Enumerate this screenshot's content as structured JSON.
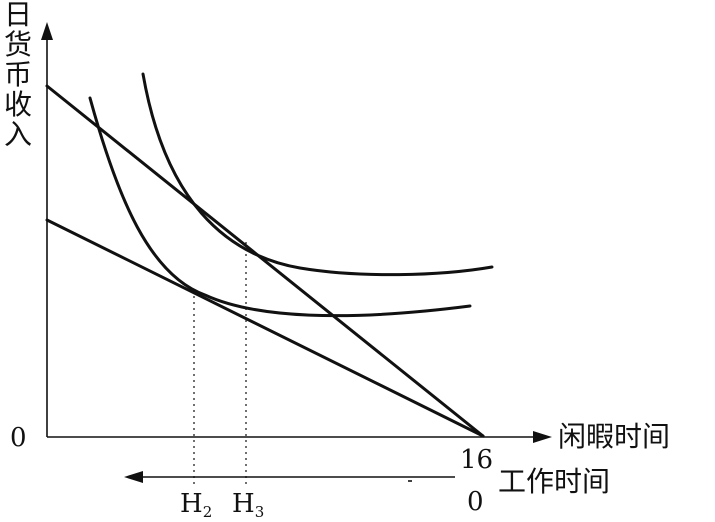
{
  "diagram": {
    "y_axis_label": "日货币收入",
    "x_axis_label": "闲暇时间",
    "work_axis_label": "工作时间",
    "origin_label": "0",
    "leisure_max_label": "16",
    "work_zero_label": "0",
    "h2_label": "H",
    "h2_sub": "2",
    "h3_label": "H",
    "h3_sub": "3"
  }
}
